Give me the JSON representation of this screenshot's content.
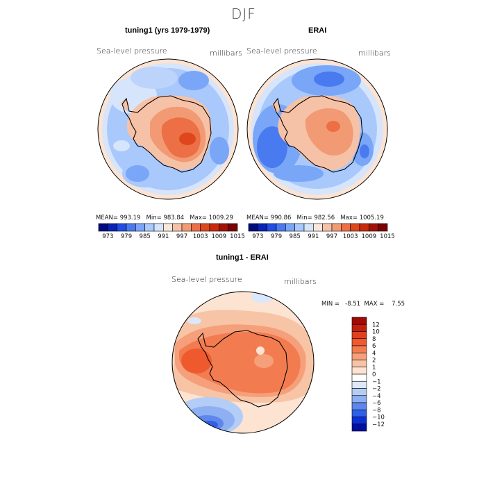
{
  "chart_data": {
    "type": "heatmap",
    "title": "DJF",
    "panels": [
      {
        "id": "model",
        "title": "tuning1 (yrs 1979-1979)",
        "left_label": "Sea-level pressure",
        "right_label": "millibars",
        "stats": "MEAN= 993.19   Min= 983.84   Max= 1009.29",
        "colorbar_ticks": [
          "973",
          "979",
          "985",
          "991",
          "997",
          "1003",
          "1009",
          "1015"
        ],
        "colorbar_colors": [
          "#000b7d",
          "#0a23b4",
          "#1f4ee0",
          "#4a7af0",
          "#7aa6f8",
          "#a9c8fb",
          "#d4e4fb",
          "#fbe6dc",
          "#f6c2a7",
          "#f29a73",
          "#ec6f45",
          "#e0461e",
          "#c92b0a",
          "#a11306",
          "#7a0204"
        ],
        "mean": 993.19,
        "min": 983.84,
        "max": 1009.29
      },
      {
        "id": "erai",
        "title": "ERAI",
        "left_label": "Sea-level pressure",
        "right_label": "millibars",
        "stats": "MEAN= 990.86   Min= 982.56   Max= 1005.19",
        "colorbar_ticks": [
          "973",
          "979",
          "985",
          "991",
          "997",
          "1003",
          "1009",
          "1015"
        ],
        "colorbar_colors": [
          "#000b7d",
          "#0a23b4",
          "#1f4ee0",
          "#4a7af0",
          "#7aa6f8",
          "#a9c8fb",
          "#d4e4fb",
          "#fbe6dc",
          "#f6c2a7",
          "#f29a73",
          "#ec6f45",
          "#e0461e",
          "#c92b0a",
          "#a11306",
          "#7a0204"
        ],
        "mean": 990.86,
        "min": 982.56,
        "max": 1005.19
      },
      {
        "id": "difference",
        "title": "tuning1 - ERAI",
        "left_label": "Sea-level pressure",
        "right_label": "millibars",
        "stats": "MIN =   -8.51  MAX =    7.55",
        "min": -8.51,
        "max": 7.55,
        "colorbar_ticks": [
          "12",
          "10",
          "8",
          "6",
          "4",
          "2",
          "1",
          "0",
          "−1",
          "−2",
          "−4",
          "−6",
          "−8",
          "−10",
          "−12"
        ],
        "colorbar_colors": [
          "#a10a05",
          "#c41f0d",
          "#e0401f",
          "#ee5a2e",
          "#f27c50",
          "#f5a07b",
          "#f8c4a6",
          "#fce3d2",
          "#ffffff",
          "#dbe7fb",
          "#b3cdf6",
          "#8eb0f2",
          "#5d87ec",
          "#2f5fe6",
          "#0c2fd6",
          "#000f9e"
        ]
      }
    ]
  }
}
